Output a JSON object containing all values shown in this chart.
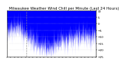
{
  "title": "Milwaukee Weather Wind Chill per Minute (Last 24 Hours)",
  "title_fontsize": 4.0,
  "line_color": "#0000FF",
  "fill_color": "#0000FF",
  "background_color": "#FFFFFF",
  "plot_bg_color": "#FFFFFF",
  "grid_color": "#CCCCCC",
  "ylim": [
    -25,
    10
  ],
  "yticks": [
    -25,
    -20,
    -15,
    -10,
    -5,
    0,
    5,
    10
  ],
  "num_points": 1440,
  "linewidth": 0.3,
  "vline_pos": 0.22
}
